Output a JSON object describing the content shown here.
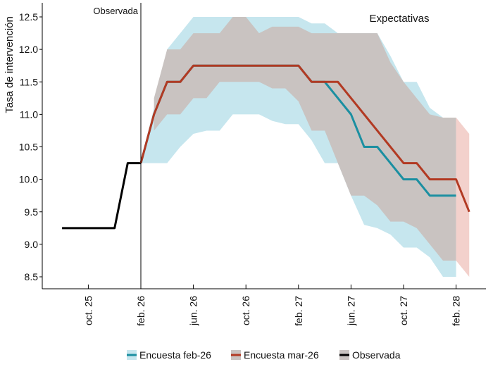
{
  "chart_data": {
    "type": "line",
    "title": "",
    "ylabel": "Tasa de intervención",
    "xlabel": "",
    "ylim": [
      8.5,
      12.5
    ],
    "yticks": [
      8.5,
      9.0,
      9.5,
      10.0,
      10.5,
      11.0,
      11.5,
      12.0,
      12.5
    ],
    "ytick_labels": [
      "8.5",
      "9.0",
      "9.5",
      "10.0",
      "10.5",
      "11.0",
      "11.5",
      "12.0",
      "12.5"
    ],
    "xtick_labels": [
      "oct. 25",
      "feb. 26",
      "jun. 26",
      "oct. 26",
      "feb. 27",
      "jun. 27",
      "oct. 27",
      "feb. 28"
    ],
    "xtick_months": [
      "2025-10",
      "2026-02",
      "2026-06",
      "2026-10",
      "2027-02",
      "2027-06",
      "2027-10",
      "2028-02"
    ],
    "annotations": {
      "observed": "Observada",
      "expectations": "Expectativas",
      "divider_month": "2026-02"
    },
    "grid": false,
    "legend_position": "bottom",
    "colors": {
      "feb": "#1b8fa1",
      "feb_band": "#c6e6ee",
      "mar": "#b23a23",
      "mar_band": "#c9c3c1",
      "mar_band_tail": "#f3d1cc",
      "obs": "#000000"
    },
    "series": [
      {
        "name": "Observada",
        "x": [
          "2025-08",
          "2025-09",
          "2025-10",
          "2025-11",
          "2025-12",
          "2026-01",
          "2026-02"
        ],
        "values": [
          9.25,
          9.25,
          9.25,
          9.25,
          9.25,
          10.25,
          10.25
        ]
      },
      {
        "name": "Encuesta feb-26",
        "x": [
          "2026-02",
          "2026-03",
          "2026-04",
          "2026-05",
          "2026-06",
          "2026-07",
          "2026-08",
          "2026-09",
          "2026-10",
          "2026-11",
          "2026-12",
          "2027-01",
          "2027-02",
          "2027-03",
          "2027-04",
          "2027-05",
          "2027-06",
          "2027-07",
          "2027-08",
          "2027-09",
          "2027-10",
          "2027-11",
          "2027-12",
          "2028-01",
          "2028-02"
        ],
        "values": [
          10.25,
          11.0,
          11.5,
          11.5,
          11.75,
          11.75,
          11.75,
          11.75,
          11.75,
          11.75,
          11.75,
          11.75,
          11.75,
          11.5,
          11.5,
          11.25,
          11.0,
          10.5,
          10.5,
          10.25,
          10.0,
          10.0,
          9.75,
          9.75,
          9.75
        ],
        "upper": [
          10.25,
          11.1,
          12.0,
          12.25,
          12.5,
          12.5,
          12.5,
          12.5,
          12.5,
          12.5,
          12.5,
          12.5,
          12.5,
          12.4,
          12.4,
          12.25,
          12.25,
          12.25,
          12.25,
          11.9,
          11.5,
          11.5,
          11.1,
          10.95,
          10.95
        ],
        "lower": [
          10.25,
          10.25,
          10.25,
          10.5,
          10.7,
          10.75,
          10.75,
          11.0,
          11.0,
          11.0,
          10.9,
          10.85,
          10.85,
          10.6,
          10.25,
          10.25,
          9.75,
          9.3,
          9.25,
          9.15,
          8.95,
          8.95,
          8.8,
          8.5,
          8.5
        ]
      },
      {
        "name": "Encuesta mar-26",
        "x": [
          "2026-02",
          "2026-03",
          "2026-04",
          "2026-05",
          "2026-06",
          "2026-07",
          "2026-08",
          "2026-09",
          "2026-10",
          "2026-11",
          "2026-12",
          "2027-01",
          "2027-02",
          "2027-03",
          "2027-04",
          "2027-05",
          "2027-06",
          "2027-07",
          "2027-08",
          "2027-09",
          "2027-10",
          "2027-11",
          "2027-12",
          "2028-01",
          "2028-02",
          "2028-03"
        ],
        "values": [
          10.25,
          11.0,
          11.5,
          11.5,
          11.75,
          11.75,
          11.75,
          11.75,
          11.75,
          11.75,
          11.75,
          11.75,
          11.75,
          11.5,
          11.5,
          11.5,
          11.25,
          11.0,
          10.75,
          10.5,
          10.25,
          10.25,
          10.0,
          10.0,
          10.0,
          9.5
        ],
        "upper": [
          null,
          11.25,
          12.0,
          12.0,
          12.25,
          12.25,
          12.25,
          12.5,
          12.5,
          12.25,
          12.35,
          12.35,
          12.35,
          12.25,
          12.25,
          12.25,
          12.25,
          12.25,
          12.25,
          11.8,
          11.5,
          11.25,
          11.0,
          10.95,
          10.95,
          10.7
        ],
        "lower": [
          null,
          10.75,
          11.0,
          11.0,
          11.25,
          11.25,
          11.5,
          11.5,
          11.5,
          11.5,
          11.4,
          11.4,
          11.2,
          10.75,
          10.75,
          10.25,
          9.75,
          9.75,
          9.6,
          9.35,
          9.35,
          9.25,
          9.0,
          8.75,
          8.75,
          8.5
        ]
      }
    ]
  },
  "legend": [
    {
      "label": "Encuesta feb-26",
      "color": "#1b8fa1",
      "fill": "#c6e6ee"
    },
    {
      "label": "Encuesta mar-26",
      "color": "#b23a23",
      "fill": "#c9c3c1"
    },
    {
      "label": "Observada",
      "color": "#000000",
      "fill": "#c9c3c1"
    }
  ]
}
